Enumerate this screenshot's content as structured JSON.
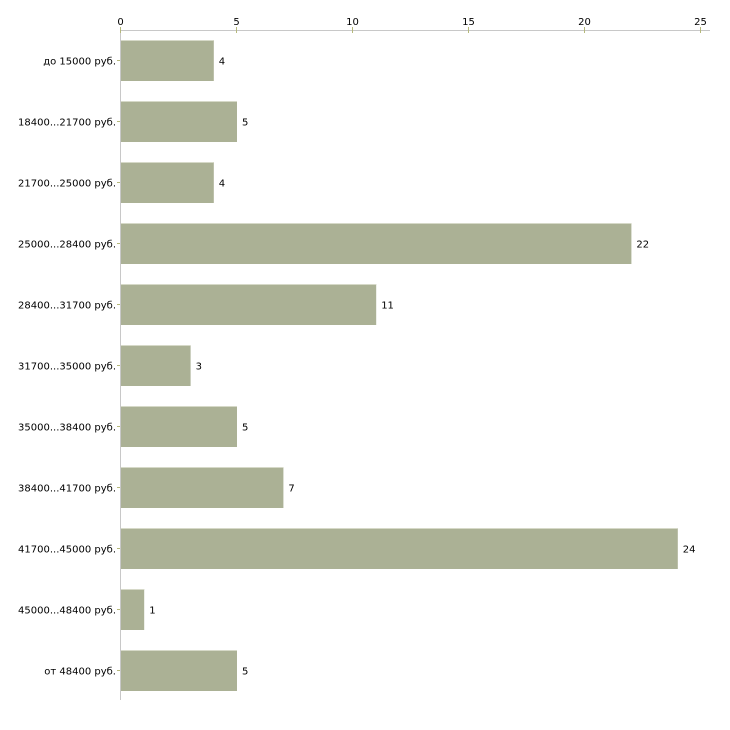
{
  "chart_data": {
    "type": "bar",
    "orientation": "horizontal",
    "title": "",
    "xlabel": "",
    "ylabel": "",
    "xlim": [
      0,
      25
    ],
    "x_ticks": [
      0,
      5,
      10,
      15,
      20,
      25
    ],
    "grid": false,
    "categories": [
      "до 15000 руб.",
      "18400...21700 руб.",
      "21700...25000 руб.",
      "25000...28400 руб.",
      "28400...31700 руб.",
      "31700...35000 руб.",
      "35000...38400 руб.",
      "38400...41700 руб.",
      "41700...45000 руб.",
      "45000...48400 руб.",
      "от 48400 руб."
    ],
    "values": [
      4,
      5,
      4,
      22,
      11,
      3,
      5,
      7,
      24,
      1,
      5
    ],
    "bar_color": "#abb195",
    "axis_color": "#c8c8c8",
    "tick_color": "#b5b87a"
  }
}
